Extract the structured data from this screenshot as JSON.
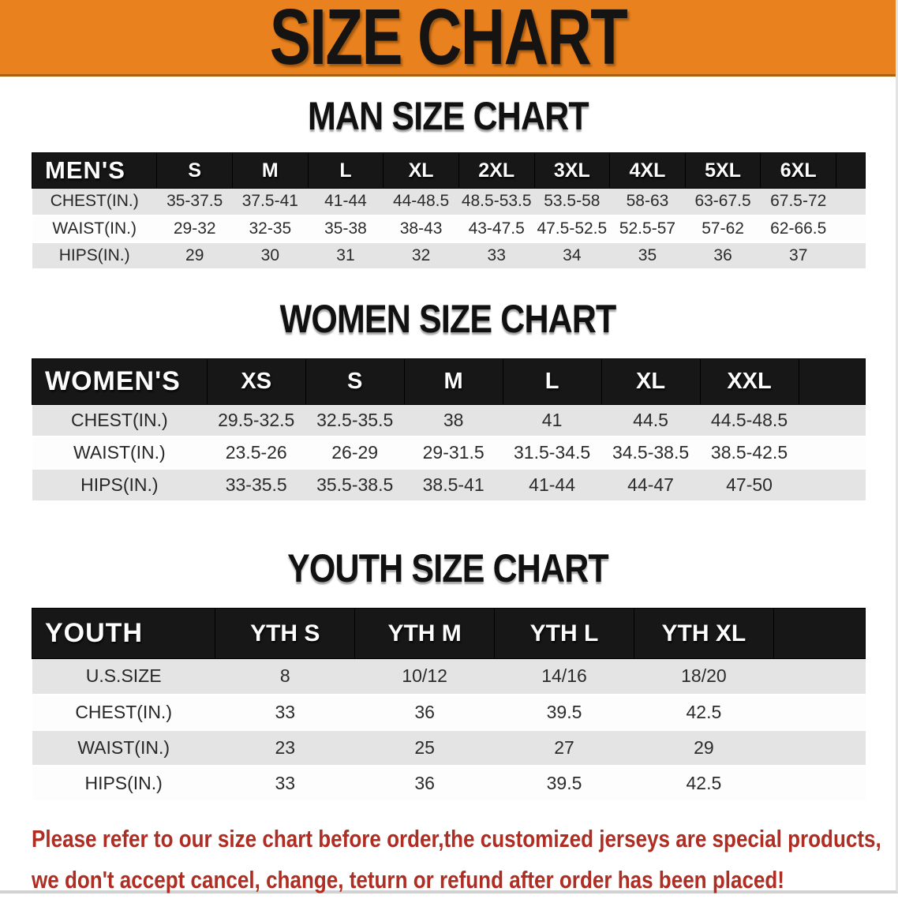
{
  "banner": {
    "title": "SIZE CHART",
    "bg_color": "#E8811E",
    "text_color": "#161413"
  },
  "colors": {
    "header_bar": "#171717",
    "row_stripe": "#E4E4E4",
    "disclaimer_red": "#AE2E24"
  },
  "tables": [
    {
      "title": "MAN SIZE CHART",
      "header": [
        "MEN'S",
        "S",
        "M",
        "L",
        "XL",
        "2XL",
        "3XL",
        "4XL",
        "5XL",
        "6XL"
      ],
      "rows": [
        {
          "label": "CHEST(IN.)",
          "values": [
            "35-37.5",
            "37.5-41",
            "41-44",
            "44-48.5",
            "48.5-53.5",
            "53.5-58",
            "58-63",
            "63-67.5",
            "67.5-72"
          ]
        },
        {
          "label": "WAIST(IN.)",
          "values": [
            "29-32",
            "32-35",
            "35-38",
            "38-43",
            "43-47.5",
            "47.5-52.5",
            "52.5-57",
            "57-62",
            "62-66.5"
          ]
        },
        {
          "label": "HIPS(IN.)",
          "values": [
            "29",
            "30",
            "31",
            "32",
            "33",
            "34",
            "35",
            "36",
            "37"
          ]
        }
      ]
    },
    {
      "title": "WOMEN SIZE CHART",
      "header": [
        "WOMEN'S",
        "XS",
        "S",
        "M",
        "L",
        "XL",
        "XXL"
      ],
      "rows": [
        {
          "label": "CHEST(IN.)",
          "values": [
            "29.5-32.5",
            "32.5-35.5",
            "38",
            "41",
            "44.5",
            "44.5-48.5"
          ]
        },
        {
          "label": "WAIST(IN.)",
          "values": [
            "23.5-26",
            "26-29",
            "29-31.5",
            "31.5-34.5",
            "34.5-38.5",
            "38.5-42.5"
          ]
        },
        {
          "label": "HIPS(IN.)",
          "values": [
            "33-35.5",
            "35.5-38.5",
            "38.5-41",
            "41-44",
            "44-47",
            "47-50"
          ]
        }
      ]
    },
    {
      "title": "YOUTH SIZE CHART",
      "header": [
        "YOUTH",
        "YTH S",
        "YTH M",
        "YTH L",
        "YTH XL"
      ],
      "rows": [
        {
          "label": "U.S.SIZE",
          "values": [
            "8",
            "10/12",
            "14/16",
            "18/20"
          ]
        },
        {
          "label": "CHEST(IN.)",
          "values": [
            "33",
            "36",
            "39.5",
            "42.5"
          ]
        },
        {
          "label": "WAIST(IN.)",
          "values": [
            "23",
            "25",
            "27",
            "29"
          ]
        },
        {
          "label": "HIPS(IN.)",
          "values": [
            "33",
            "36",
            "39.5",
            "42.5"
          ]
        }
      ]
    }
  ],
  "disclaimer": {
    "line1": "Please refer to our size chart before order,the customized jerseys are special products,",
    "line2": "we don't accept cancel, change, teturn or refund after order has been placed!"
  }
}
